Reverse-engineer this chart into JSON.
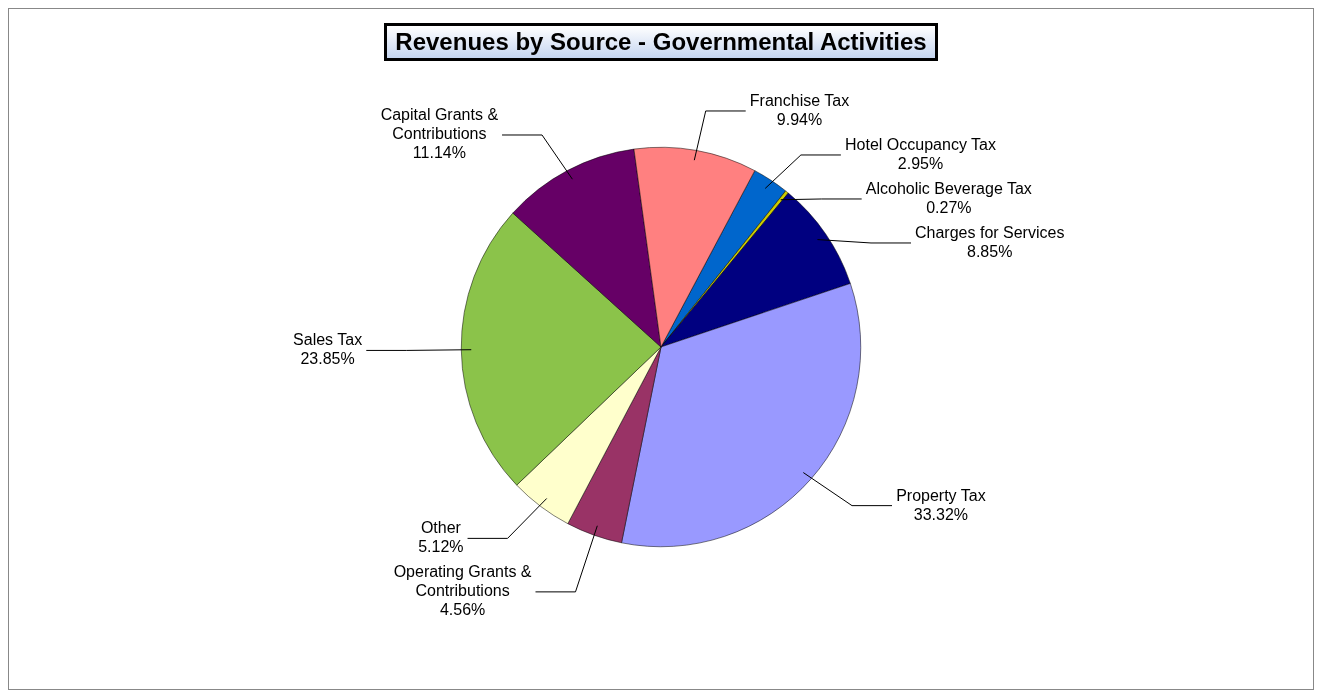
{
  "chart_data": {
    "type": "pie",
    "title": "Revenues by Source - Governmental Activities",
    "categories": [
      "Hotel Occupancy Tax",
      "Alcoholic Beverage Tax",
      "Charges for Services",
      "Property Tax",
      "Operating Grants & Contributions",
      "Other",
      "Sales Tax",
      "Capital Grants & Contributions",
      "Franchise Tax"
    ],
    "values": [
      2.95,
      0.27,
      8.85,
      33.32,
      4.56,
      5.12,
      23.85,
      11.14,
      9.94
    ],
    "value_labels": [
      "2.95%",
      "0.27%",
      "8.85%",
      "33.32%",
      "4.56%",
      "5.12%",
      "23.85%",
      "11.14%",
      "9.94%"
    ],
    "colors": [
      "#0066cc",
      "#cccc00",
      "#000080",
      "#9999ff",
      "#993366",
      "#ffffcc",
      "#8bc34a",
      "#660066",
      "#ff8080"
    ],
    "legend": false
  }
}
